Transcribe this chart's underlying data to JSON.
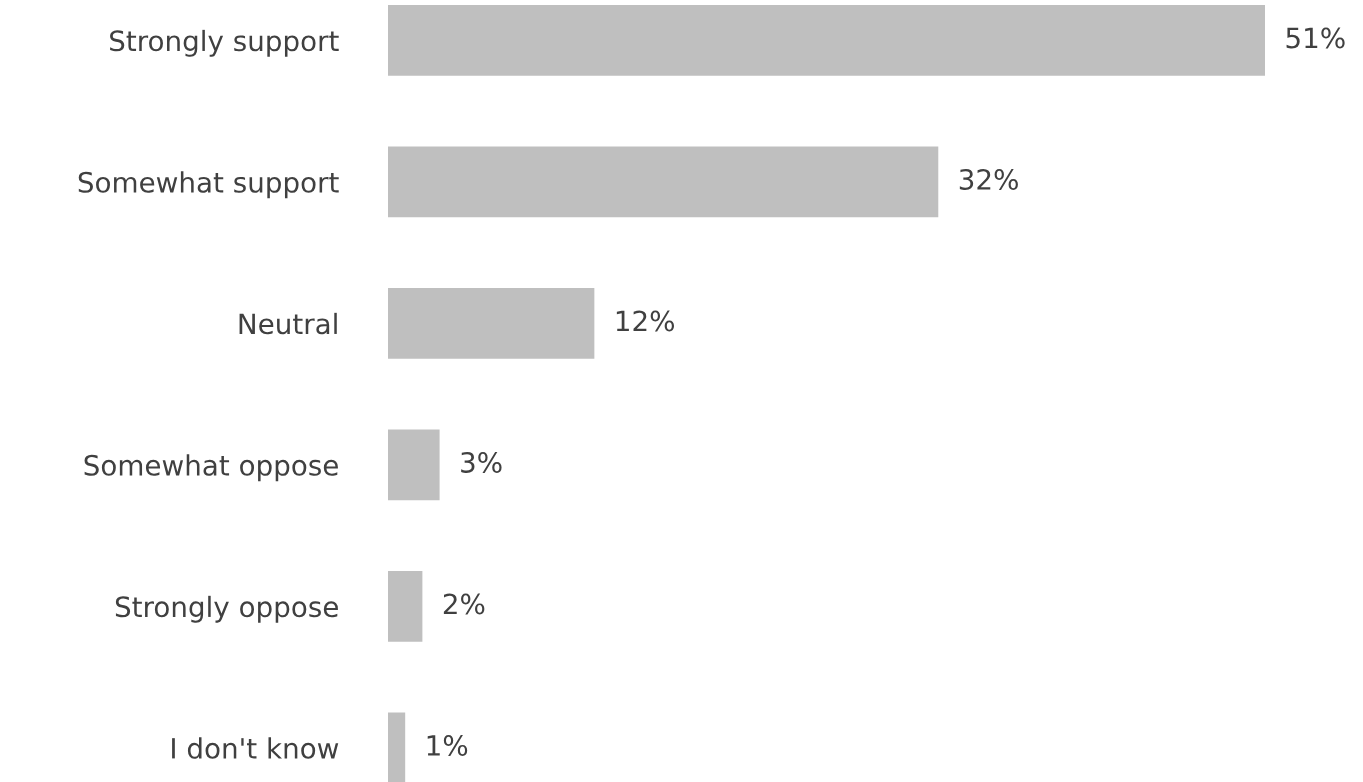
{
  "chart_data": {
    "type": "bar",
    "orientation": "horizontal",
    "categories": [
      "Strongly support",
      "Somewhat support",
      "Neutral",
      "Somewhat oppose",
      "Strongly oppose",
      "I don't know"
    ],
    "values": [
      51,
      32,
      12,
      3,
      2,
      1
    ],
    "value_labels": [
      "51%",
      "32%",
      "12%",
      "3%",
      "2%",
      "1%"
    ],
    "color": "#bfbfbf",
    "grid": false,
    "legend": false,
    "tick_labels": "y"
  }
}
